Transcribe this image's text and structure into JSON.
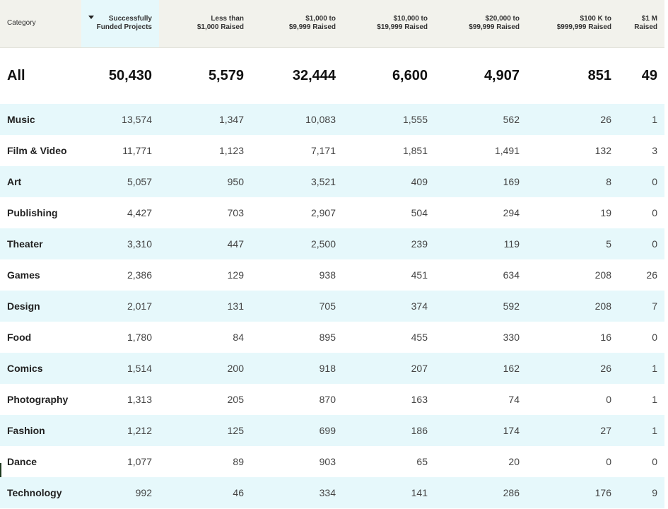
{
  "table": {
    "columns": [
      {
        "lines": [
          "Category"
        ]
      },
      {
        "lines": [
          "Successfully",
          "Funded Projects"
        ],
        "sorted": true
      },
      {
        "lines": [
          "Less than",
          "$1,000 Raised"
        ]
      },
      {
        "lines": [
          "$1,000 to",
          "$9,999 Raised"
        ]
      },
      {
        "lines": [
          "$10,000 to",
          "$19,999 Raised"
        ]
      },
      {
        "lines": [
          "$20,000 to",
          "$99,999 Raised"
        ]
      },
      {
        "lines": [
          "$100 K to",
          "$999,999 Raised"
        ]
      },
      {
        "lines": [
          "$1 M",
          "Raised"
        ]
      }
    ],
    "all_row": [
      "All",
      "50,430",
      "5,579",
      "32,444",
      "6,600",
      "4,907",
      "851",
      "49"
    ],
    "rows": [
      [
        "Music",
        "13,574",
        "1,347",
        "10,083",
        "1,555",
        "562",
        "26",
        "1"
      ],
      [
        "Film & Video",
        "11,771",
        "1,123",
        "7,171",
        "1,851",
        "1,491",
        "132",
        "3"
      ],
      [
        "Art",
        "5,057",
        "950",
        "3,521",
        "409",
        "169",
        "8",
        "0"
      ],
      [
        "Publishing",
        "4,427",
        "703",
        "2,907",
        "504",
        "294",
        "19",
        "0"
      ],
      [
        "Theater",
        "3,310",
        "447",
        "2,500",
        "239",
        "119",
        "5",
        "0"
      ],
      [
        "Games",
        "2,386",
        "129",
        "938",
        "451",
        "634",
        "208",
        "26"
      ],
      [
        "Design",
        "2,017",
        "131",
        "705",
        "374",
        "592",
        "208",
        "7"
      ],
      [
        "Food",
        "1,780",
        "84",
        "895",
        "455",
        "330",
        "16",
        "0"
      ],
      [
        "Comics",
        "1,514",
        "200",
        "918",
        "207",
        "162",
        "26",
        "1"
      ],
      [
        "Photography",
        "1,313",
        "205",
        "870",
        "163",
        "74",
        "0",
        "1"
      ],
      [
        "Fashion",
        "1,212",
        "125",
        "699",
        "186",
        "174",
        "27",
        "1"
      ],
      [
        "Dance",
        "1,077",
        "89",
        "903",
        "65",
        "20",
        "0",
        "0"
      ],
      [
        "Technology",
        "992",
        "46",
        "334",
        "141",
        "286",
        "176",
        "9"
      ]
    ]
  },
  "icons": {
    "sort": "sort-descending-icon"
  }
}
